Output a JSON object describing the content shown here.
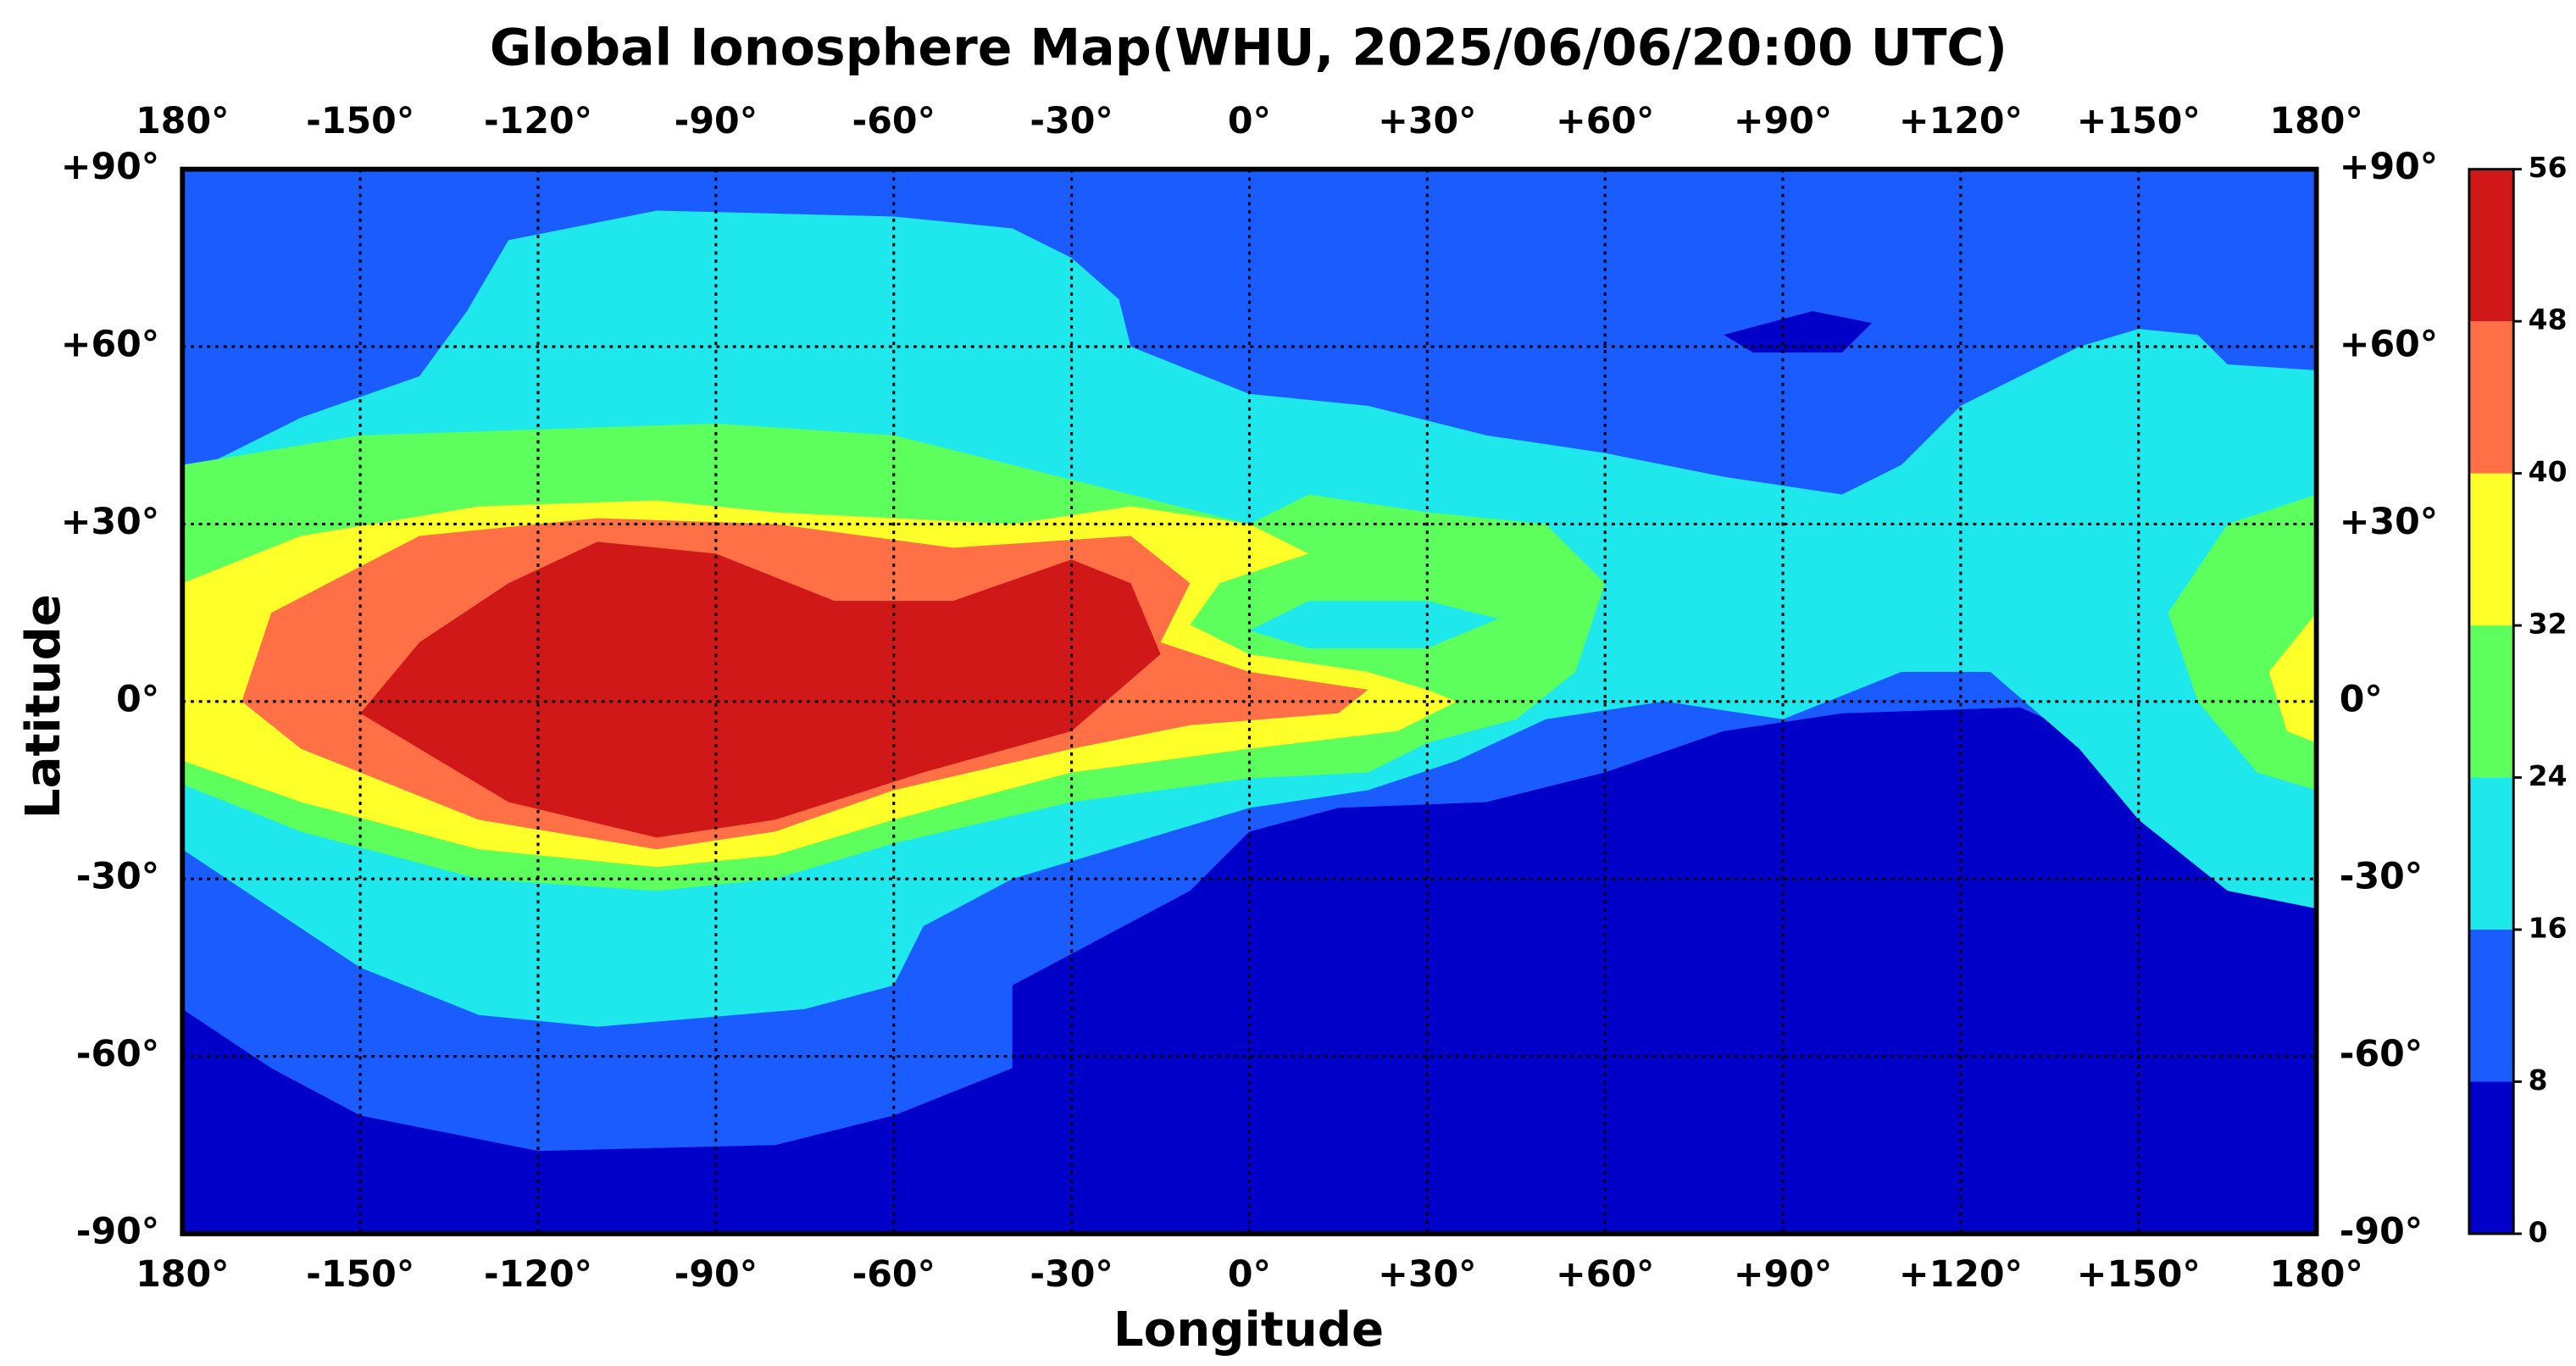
{
  "chart_data": {
    "type": "contour",
    "title": "Global Ionosphere Map(WHU, 2025/06/06/20:00 UTC)",
    "x_label": "Longitude",
    "y_label": "Latitude",
    "xlim": [
      -180,
      180
    ],
    "ylim": [
      -90,
      90
    ],
    "xticks": [
      {
        "value": -180,
        "label": "180°"
      },
      {
        "value": -150,
        "label": "-150°"
      },
      {
        "value": -120,
        "label": "-120°"
      },
      {
        "value": -90,
        "label": "-90°"
      },
      {
        "value": -60,
        "label": "-60°"
      },
      {
        "value": -30,
        "label": "-30°"
      },
      {
        "value": 0,
        "label": "0°"
      },
      {
        "value": 30,
        "label": "+30°"
      },
      {
        "value": 60,
        "label": "+60°"
      },
      {
        "value": 90,
        "label": "+90°"
      },
      {
        "value": 120,
        "label": "+120°"
      },
      {
        "value": 150,
        "label": "+150°"
      },
      {
        "value": 180,
        "label": "180°"
      }
    ],
    "yticks": [
      {
        "value": 90,
        "label": "+90°"
      },
      {
        "value": 60,
        "label": "+60°"
      },
      {
        "value": 30,
        "label": "+30°"
      },
      {
        "value": 0,
        "label": "0°"
      },
      {
        "value": -30,
        "label": "-30°"
      },
      {
        "value": -60,
        "label": "-60°"
      },
      {
        "value": -90,
        "label": "-90°"
      }
    ],
    "levels": [
      0,
      8,
      16,
      24,
      32,
      40,
      48,
      56
    ],
    "colors": [
      "#0000c8",
      "#1a5cff",
      "#1ee8ec",
      "#5cff5c",
      "#ffff2a",
      "#ff7047",
      "#d01818"
    ],
    "grid": true
  }
}
